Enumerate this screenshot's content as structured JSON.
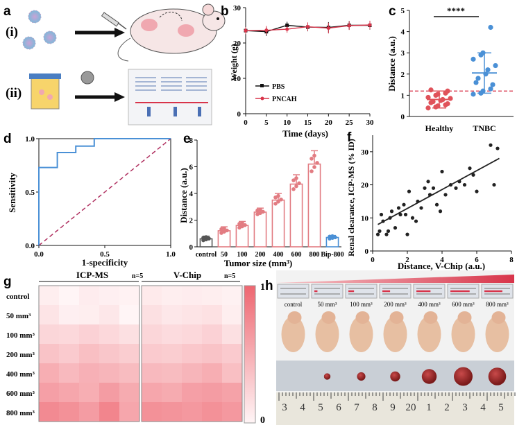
{
  "panel_labels": {
    "a": "a",
    "b": "b",
    "c": "c",
    "d": "d",
    "e": "e",
    "f": "f",
    "g": "g",
    "h": "h"
  },
  "schematic": {
    "step1": "(i)",
    "step2": "(ii)"
  },
  "chart_data": [
    {
      "panel": "b",
      "type": "line",
      "xlabel": "Time (days)",
      "ylabel": "Weight (g)",
      "x": [
        0,
        5,
        10,
        15,
        20,
        25,
        30
      ],
      "xticks": [
        "0",
        "5",
        "10",
        "15",
        "20",
        "25",
        "30"
      ],
      "yticks": [
        "0",
        "10",
        "20",
        "30"
      ],
      "xlim": [
        0,
        30
      ],
      "ylim": [
        0,
        30
      ],
      "series": [
        {
          "name": "PBS",
          "color": "#111111",
          "values": [
            23.5,
            23.2,
            25.0,
            24.5,
            24.4,
            25.0,
            25.0
          ],
          "err": [
            1.0,
            1.2,
            1.0,
            1.2,
            1.5,
            1.2,
            1.2
          ]
        },
        {
          "name": "PNCAH",
          "color": "#d8344a",
          "values": [
            23.5,
            23.6,
            23.9,
            24.6,
            24.2,
            24.9,
            25.1
          ],
          "err": [
            1.0,
            1.2,
            1.0,
            1.2,
            1.5,
            1.2,
            1.2
          ]
        }
      ],
      "legend": "lower-left"
    },
    {
      "panel": "c",
      "type": "scatter",
      "ylabel": "Distance (a.u.)",
      "ylim": [
        0,
        5
      ],
      "yticks": [
        "0",
        "1",
        "2",
        "3",
        "4",
        "5"
      ],
      "categories": [
        "Healthy",
        "TNBC"
      ],
      "significance": "****",
      "threshold": 1.2,
      "groups": [
        {
          "name": "Healthy",
          "color": "#e0525a",
          "mean": 0.8,
          "sd": 0.4,
          "values": [
            0.4,
            0.45,
            0.5,
            0.55,
            0.6,
            0.65,
            0.7,
            0.75,
            0.8,
            0.85,
            0.9,
            1.0,
            1.05,
            1.1,
            1.2,
            1.25
          ]
        },
        {
          "name": "TNBC",
          "color": "#4a90d6",
          "mean": 2.05,
          "sd": 0.95,
          "values": [
            1.05,
            1.1,
            1.2,
            1.3,
            1.5,
            1.6,
            1.8,
            2.0,
            2.2,
            2.4,
            2.7,
            2.9,
            3.0,
            4.2
          ]
        }
      ]
    },
    {
      "panel": "d",
      "type": "line",
      "xlabel": "1-specificity",
      "ylabel": "Sensitivity",
      "xticks": [
        "0.0",
        "0.5",
        "1.0"
      ],
      "yticks": [
        "0.0",
        "0.5",
        "1.0"
      ],
      "xlim": [
        0,
        1
      ],
      "ylim": [
        0,
        1
      ],
      "roc": [
        [
          0,
          0
        ],
        [
          0,
          0.73
        ],
        [
          0.14,
          0.73
        ],
        [
          0.14,
          0.87
        ],
        [
          0.28,
          0.87
        ],
        [
          0.28,
          0.93
        ],
        [
          0.42,
          0.93
        ],
        [
          0.42,
          1.0
        ],
        [
          1.0,
          1.0
        ]
      ],
      "roc_color": "#4a90d6",
      "diag_color": "#b03060"
    },
    {
      "panel": "e",
      "type": "bar",
      "xlabel": "Tumor size (mm³)",
      "ylabel": "Distance (a.u.)",
      "ylim": [
        0,
        8
      ],
      "yticks": [
        "0",
        "2",
        "4",
        "6",
        "8"
      ],
      "categories": [
        "control",
        "50",
        "100",
        "200",
        "400",
        "600",
        "800",
        "Bip-800"
      ],
      "values": [
        0.6,
        1.2,
        1.6,
        2.6,
        3.5,
        4.7,
        6.2,
        0.7
      ],
      "err": [
        0.2,
        0.3,
        0.3,
        0.3,
        0.5,
        0.7,
        1.0,
        0.15
      ],
      "bar_colors": [
        "#555555",
        "#e27c82",
        "#e27c82",
        "#e27c82",
        "#e27c82",
        "#e27c82",
        "#e27c82",
        "#4a90d6"
      ]
    },
    {
      "panel": "f",
      "type": "scatter",
      "xlabel": "Distance, V-Chip (a.u.)",
      "ylabel": "Renal clearance, ICP-MS (% ID)",
      "xlim": [
        0,
        8
      ],
      "ylim": [
        0,
        35
      ],
      "xticks": [
        "0",
        "2",
        "4",
        "6",
        "8"
      ],
      "yticks": [
        "0",
        "10",
        "20",
        "30"
      ],
      "points": [
        [
          0.3,
          5
        ],
        [
          0.4,
          6
        ],
        [
          0.5,
          11
        ],
        [
          0.6,
          9
        ],
        [
          0.8,
          5
        ],
        [
          0.9,
          6
        ],
        [
          1.0,
          10
        ],
        [
          1.1,
          12
        ],
        [
          1.3,
          7
        ],
        [
          1.5,
          13
        ],
        [
          1.6,
          11
        ],
        [
          1.8,
          14
        ],
        [
          1.9,
          11
        ],
        [
          2.0,
          5
        ],
        [
          2.1,
          18
        ],
        [
          2.3,
          10
        ],
        [
          2.5,
          9
        ],
        [
          2.6,
          15
        ],
        [
          2.8,
          13
        ],
        [
          3.0,
          19
        ],
        [
          3.2,
          21
        ],
        [
          3.3,
          17
        ],
        [
          3.5,
          19
        ],
        [
          3.7,
          14
        ],
        [
          3.9,
          12
        ],
        [
          4.0,
          24
        ],
        [
          4.2,
          17
        ],
        [
          4.5,
          20
        ],
        [
          4.8,
          19
        ],
        [
          5.0,
          21
        ],
        [
          5.3,
          20
        ],
        [
          5.6,
          25
        ],
        [
          5.8,
          23
        ],
        [
          6.0,
          18
        ],
        [
          6.8,
          32
        ],
        [
          7.0,
          20
        ],
        [
          7.2,
          31
        ]
      ],
      "fit": [
        [
          0.3,
          8
        ],
        [
          7.3,
          28
        ]
      ],
      "color": "#222222"
    },
    {
      "panel": "g",
      "type": "heatmap",
      "rows": [
        "control",
        "50 mm³",
        "100 mm³",
        "200 mm³",
        "400 mm³",
        "600 mm³",
        "800 mm³"
      ],
      "colorbar_max": "1",
      "colorbar_min": "0",
      "maps": [
        {
          "title": "ICP-MS",
          "n": "n=5",
          "values": [
            [
              0.05,
              0.0,
              0.06,
              0.04,
              0.02
            ],
            [
              0.12,
              0.04,
              0.05,
              0.1,
              0.0
            ],
            [
              0.22,
              0.2,
              0.25,
              0.2,
              0.15
            ],
            [
              0.35,
              0.3,
              0.38,
              0.33,
              0.28
            ],
            [
              0.5,
              0.42,
              0.48,
              0.45,
              0.4
            ],
            [
              0.6,
              0.55,
              0.5,
              0.62,
              0.52
            ],
            [
              0.75,
              0.7,
              0.62,
              0.78,
              0.55
            ]
          ]
        },
        {
          "title": "V-Chip",
          "n": "n=5",
          "values": [
            [
              0.08,
              0.05,
              0.06,
              0.05,
              0.03
            ],
            [
              0.15,
              0.1,
              0.12,
              0.14,
              0.05
            ],
            [
              0.22,
              0.18,
              0.2,
              0.25,
              0.15
            ],
            [
              0.3,
              0.28,
              0.32,
              0.35,
              0.3
            ],
            [
              0.42,
              0.4,
              0.45,
              0.5,
              0.38
            ],
            [
              0.55,
              0.52,
              0.6,
              0.62,
              0.58
            ],
            [
              0.7,
              0.68,
              0.65,
              0.7,
              0.65
            ]
          ]
        }
      ]
    }
  ],
  "panel_h": {
    "labels": [
      "control",
      "50 mm³",
      "100 mm³",
      "200 mm³",
      "400 mm³",
      "600 mm³",
      "800 mm³"
    ],
    "ruler": [
      "3",
      "4",
      "5",
      "6",
      "7",
      "8",
      "9",
      "20",
      "1",
      "2",
      "3",
      "4",
      "5"
    ],
    "tumor_fill": [
      0,
      0.12,
      0.22,
      0.3,
      0.55,
      0.75,
      0.7
    ]
  },
  "colors": {
    "pink": "#e27c82",
    "red": "#d8344a",
    "blue": "#4a90d6",
    "heat": "#ee6670"
  }
}
